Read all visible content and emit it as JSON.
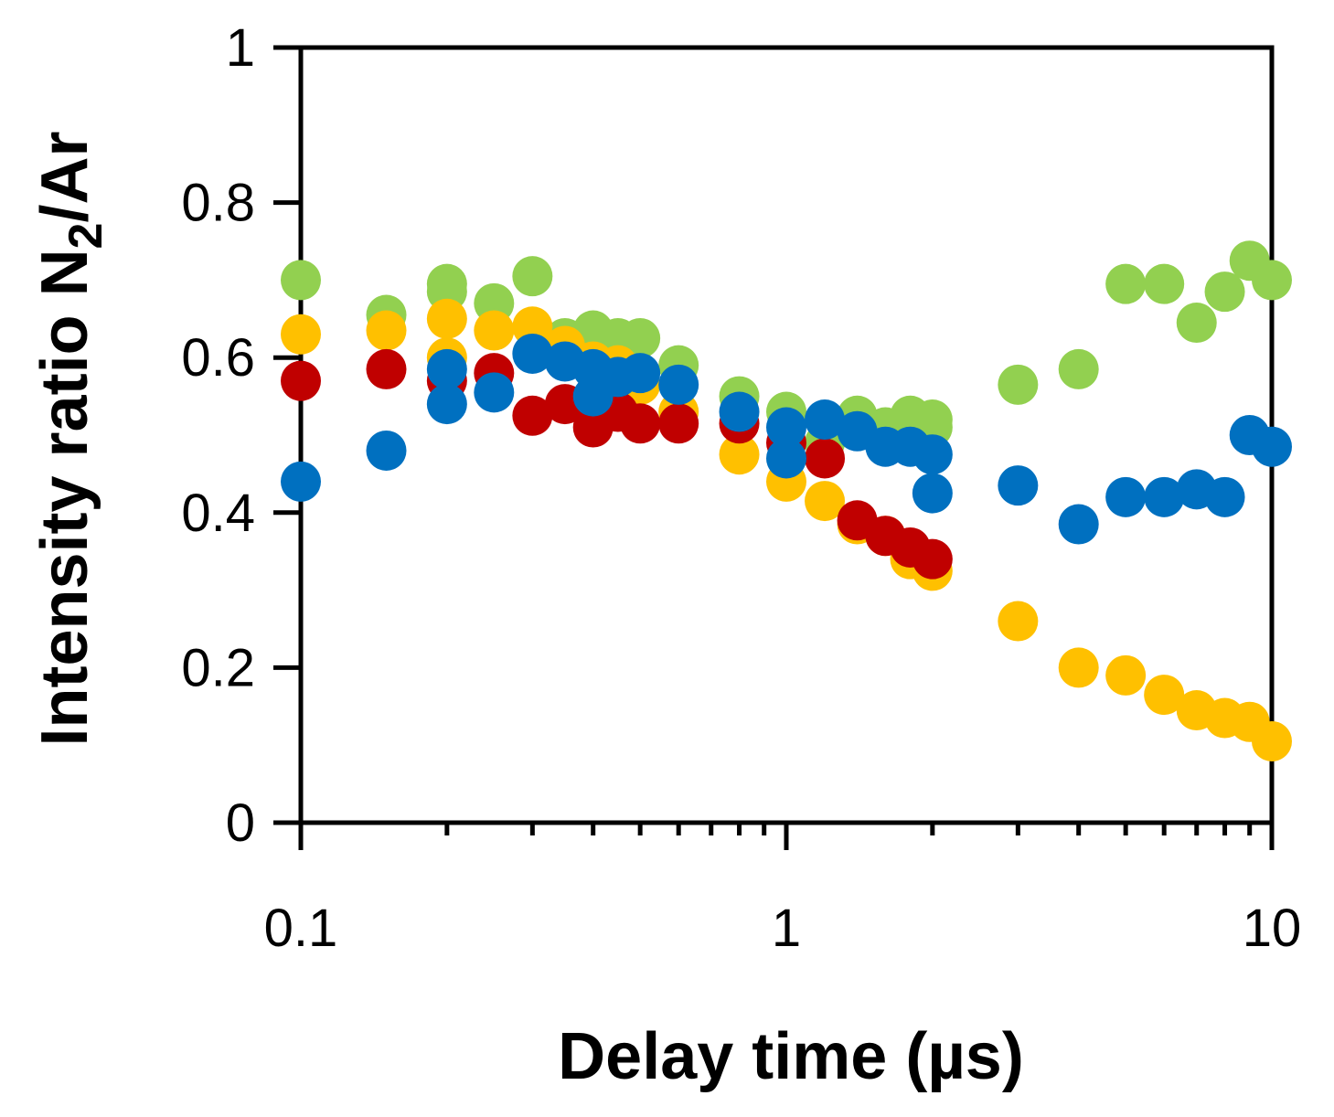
{
  "chart_data": {
    "type": "scatter",
    "title": "",
    "xlabel": "Delay time (µs)",
    "ylabel_parts": {
      "main": "Intensity ratio N",
      "sub": "2",
      "tail": "/Ar"
    },
    "xscale": "log",
    "xlim": [
      0.1,
      10
    ],
    "ylim": [
      0,
      1
    ],
    "xticks": [
      0.1,
      1,
      10
    ],
    "xtick_labels": [
      "0.1",
      "1",
      "10"
    ],
    "yticks": [
      0,
      0.2,
      0.4,
      0.6,
      0.8,
      1
    ],
    "ytick_labels": [
      "0",
      "0.2",
      "0.4",
      "0.6",
      "0.8",
      "1"
    ],
    "grid": false,
    "legend": "none",
    "series": [
      {
        "color": "#92d050",
        "x": [
          0.1,
          0.15,
          0.2,
          0.2,
          0.25,
          0.3,
          0.35,
          0.4,
          0.45,
          0.5,
          0.6,
          0.8,
          1.0,
          1.2,
          1.4,
          1.6,
          1.8,
          2.0,
          2.0,
          3,
          4,
          5,
          6,
          7,
          8,
          9,
          10
        ],
        "y": [
          0.7,
          0.655,
          0.695,
          0.685,
          0.67,
          0.705,
          0.625,
          0.635,
          0.625,
          0.625,
          0.59,
          0.55,
          0.53,
          0.49,
          0.525,
          0.51,
          0.525,
          0.52,
          0.51,
          0.565,
          0.585,
          0.695,
          0.695,
          0.645,
          0.685,
          0.725,
          0.7
        ]
      },
      {
        "color": "#ffc000",
        "x": [
          0.1,
          0.15,
          0.2,
          0.2,
          0.25,
          0.3,
          0.35,
          0.4,
          0.45,
          0.5,
          0.6,
          0.8,
          1.0,
          1.2,
          1.4,
          1.6,
          1.8,
          2.0,
          3,
          4,
          5,
          6,
          7,
          8,
          9,
          10
        ],
        "y": [
          0.63,
          0.635,
          0.65,
          0.6,
          0.635,
          0.64,
          0.615,
          0.595,
          0.59,
          0.565,
          0.53,
          0.475,
          0.44,
          0.415,
          0.385,
          0.37,
          0.34,
          0.325,
          0.26,
          0.2,
          0.19,
          0.165,
          0.145,
          0.135,
          0.13,
          0.105
        ]
      },
      {
        "color": "#c00000",
        "x": [
          0.1,
          0.15,
          0.2,
          0.25,
          0.3,
          0.35,
          0.4,
          0.45,
          0.5,
          0.6,
          0.8,
          1.0,
          1.2,
          1.4,
          1.6,
          1.8,
          2.0
        ],
        "y": [
          0.57,
          0.585,
          0.57,
          0.58,
          0.525,
          0.54,
          0.51,
          0.53,
          0.515,
          0.515,
          0.515,
          0.49,
          0.47,
          0.39,
          0.37,
          0.355,
          0.34
        ]
      },
      {
        "color": "#0070c0",
        "x": [
          0.1,
          0.15,
          0.2,
          0.2,
          0.25,
          0.3,
          0.35,
          0.4,
          0.4,
          0.45,
          0.5,
          0.6,
          0.8,
          1.0,
          1.0,
          1.2,
          1.4,
          1.6,
          1.8,
          2.0,
          2.0,
          3,
          4,
          5,
          6,
          7,
          8,
          9,
          10
        ],
        "y": [
          0.44,
          0.48,
          0.585,
          0.54,
          0.555,
          0.605,
          0.595,
          0.585,
          0.55,
          0.575,
          0.58,
          0.565,
          0.53,
          0.51,
          0.47,
          0.52,
          0.505,
          0.485,
          0.485,
          0.475,
          0.425,
          0.435,
          0.385,
          0.42,
          0.42,
          0.43,
          0.42,
          0.5,
          0.485
        ]
      }
    ]
  }
}
